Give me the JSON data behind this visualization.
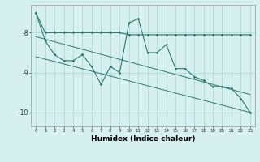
{
  "title": "",
  "xlabel": "Humidex (Indice chaleur)",
  "background_color": "#d6f0f0",
  "grid_color": "#b0dada",
  "line_color": "#2d7a6e",
  "x": [
    0,
    1,
    2,
    3,
    4,
    5,
    6,
    7,
    8,
    9,
    10,
    11,
    12,
    13,
    14,
    15,
    16,
    17,
    18,
    19,
    20,
    21,
    22,
    23
  ],
  "line1": [
    -7.5,
    -8.0,
    -8.0,
    -8.0,
    -8.0,
    -8.0,
    -8.0,
    -8.0,
    -8.0,
    -8.0,
    -8.05,
    -8.05,
    -8.05,
    -8.05,
    -8.05,
    -8.05,
    -8.05,
    -8.05,
    -8.05,
    -8.05,
    -8.05,
    -8.05,
    -8.05,
    -8.05
  ],
  "line2": [
    -7.5,
    -8.2,
    -8.55,
    -8.7,
    -8.7,
    -8.55,
    -8.85,
    -9.3,
    -8.85,
    -9.0,
    -7.75,
    -7.65,
    -8.5,
    -8.5,
    -8.3,
    -8.9,
    -8.9,
    -9.1,
    -9.2,
    -9.35,
    -9.35,
    -9.4,
    -9.65,
    -10.0
  ],
  "line3_x": [
    0,
    23
  ],
  "line3_y": [
    -8.1,
    -9.55
  ],
  "line4_x": [
    0,
    23
  ],
  "line4_y": [
    -8.6,
    -10.0
  ],
  "ylim": [
    -10.35,
    -7.3
  ],
  "yticks": [
    -10,
    -9,
    -8
  ],
  "xticks": [
    0,
    1,
    2,
    3,
    4,
    5,
    6,
    7,
    8,
    9,
    10,
    11,
    12,
    13,
    14,
    15,
    16,
    17,
    18,
    19,
    20,
    21,
    22,
    23
  ]
}
